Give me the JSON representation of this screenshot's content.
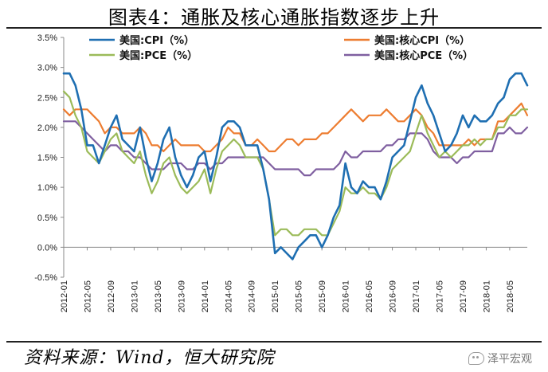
{
  "header": {
    "title": "图表4：通胀及核心通胀指数逐步上升"
  },
  "footer": {
    "source": "资料来源：Wind，恒大研究院",
    "watermark": "泽平宏观",
    "watermark_icon": "wechat-icon"
  },
  "chart_data": {
    "type": "line",
    "title": "图表4：通胀及核心通胀指数逐步上升",
    "xlabel": "",
    "ylabel": "",
    "ylim": [
      -0.5,
      3.5
    ],
    "yticks": [
      "-0.5%",
      "0.0%",
      "0.5%",
      "1.0%",
      "1.5%",
      "2.0%",
      "2.5%",
      "3.0%",
      "3.5%"
    ],
    "ytick_values": [
      -0.5,
      0.0,
      0.5,
      1.0,
      1.5,
      2.0,
      2.5,
      3.0,
      3.5
    ],
    "xtick_labels": [
      "2012-01",
      "2012-05",
      "2012-09",
      "2013-01",
      "2013-05",
      "2013-09",
      "2014-01",
      "2014-05",
      "2014-09",
      "2015-01",
      "2015-05",
      "2015-09",
      "2016-01",
      "2016-05",
      "2016-09",
      "2017-01",
      "2017-05",
      "2017-09",
      "2018-01",
      "2018-05"
    ],
    "x_start": "2012-01",
    "x_end": "2018-07",
    "grid": false,
    "legend_position": "top",
    "series": [
      {
        "name": "美国:CPI（%）",
        "color": "#1f6fb2",
        "values": [
          2.9,
          2.9,
          2.7,
          2.3,
          1.7,
          1.7,
          1.4,
          1.7,
          2.0,
          2.2,
          1.8,
          1.7,
          1.6,
          2.0,
          1.5,
          1.1,
          1.4,
          1.8,
          2.0,
          1.5,
          1.2,
          1.0,
          1.2,
          1.5,
          1.6,
          1.1,
          1.5,
          2.0,
          2.1,
          2.1,
          2.0,
          1.7,
          1.7,
          1.7,
          1.3,
          0.8,
          -0.1,
          0.0,
          -0.1,
          -0.2,
          0.0,
          0.1,
          0.2,
          0.2,
          0.0,
          0.2,
          0.5,
          0.7,
          1.4,
          1.0,
          0.9,
          1.1,
          1.0,
          1.0,
          0.8,
          1.1,
          1.5,
          1.6,
          1.7,
          2.1,
          2.5,
          2.7,
          2.4,
          2.2,
          1.9,
          1.6,
          1.7,
          1.9,
          2.2,
          2.0,
          2.2,
          2.1,
          2.1,
          2.2,
          2.4,
          2.5,
          2.8,
          2.9,
          2.9,
          2.7
        ]
      },
      {
        "name": "美国:核心CPI（%）",
        "color": "#ed7d31",
        "values": [
          2.3,
          2.2,
          2.3,
          2.3,
          2.3,
          2.2,
          2.1,
          1.9,
          2.0,
          2.0,
          1.9,
          1.9,
          1.9,
          2.0,
          1.9,
          1.7,
          1.7,
          1.6,
          1.7,
          1.8,
          1.7,
          1.7,
          1.7,
          1.7,
          1.6,
          1.6,
          1.7,
          1.8,
          2.0,
          1.9,
          1.9,
          1.7,
          1.7,
          1.8,
          1.7,
          1.6,
          1.6,
          1.7,
          1.8,
          1.8,
          1.7,
          1.8,
          1.8,
          1.8,
          1.9,
          1.9,
          2.0,
          2.1,
          2.2,
          2.3,
          2.2,
          2.1,
          2.2,
          2.2,
          2.2,
          2.3,
          2.2,
          2.1,
          2.1,
          2.2,
          2.3,
          2.2,
          2.0,
          1.9,
          1.7,
          1.7,
          1.7,
          1.7,
          1.7,
          1.8,
          1.7,
          1.8,
          1.8,
          1.8,
          2.1,
          2.1,
          2.2,
          2.3,
          2.4,
          2.2
        ]
      },
      {
        "name": "美国:PCE（%）",
        "color": "#9bbb59",
        "values": [
          2.6,
          2.5,
          2.2,
          2.0,
          1.6,
          1.5,
          1.4,
          1.6,
          1.8,
          1.9,
          1.6,
          1.5,
          1.4,
          1.6,
          1.2,
          0.9,
          1.1,
          1.4,
          1.5,
          1.2,
          1.0,
          0.9,
          1.0,
          1.1,
          1.3,
          0.9,
          1.3,
          1.6,
          1.7,
          1.8,
          1.7,
          1.5,
          1.5,
          1.5,
          1.3,
          0.8,
          0.2,
          0.3,
          0.3,
          0.2,
          0.2,
          0.3,
          0.3,
          0.3,
          0.2,
          0.2,
          0.4,
          0.6,
          1.0,
          0.9,
          0.9,
          1.0,
          0.9,
          0.9,
          0.8,
          1.0,
          1.3,
          1.4,
          1.5,
          1.6,
          1.9,
          2.2,
          1.9,
          1.7,
          1.5,
          1.6,
          1.5,
          1.6,
          1.7,
          1.7,
          1.8,
          1.7,
          1.8,
          1.8,
          2.0,
          2.0,
          2.2,
          2.2,
          2.3,
          2.3
        ]
      },
      {
        "name": "美国:核心PCE（%）",
        "color": "#7f5fa0",
        "values": [
          2.1,
          2.1,
          2.1,
          2.0,
          1.9,
          1.8,
          1.7,
          1.6,
          1.7,
          1.7,
          1.6,
          1.6,
          1.5,
          1.5,
          1.4,
          1.3,
          1.3,
          1.3,
          1.4,
          1.4,
          1.4,
          1.3,
          1.3,
          1.4,
          1.4,
          1.3,
          1.4,
          1.4,
          1.5,
          1.5,
          1.5,
          1.5,
          1.5,
          1.5,
          1.5,
          1.4,
          1.3,
          1.3,
          1.3,
          1.3,
          1.3,
          1.2,
          1.2,
          1.3,
          1.3,
          1.3,
          1.3,
          1.4,
          1.6,
          1.5,
          1.5,
          1.6,
          1.6,
          1.6,
          1.6,
          1.7,
          1.7,
          1.8,
          1.8,
          1.9,
          1.9,
          1.9,
          1.8,
          1.6,
          1.5,
          1.5,
          1.5,
          1.4,
          1.5,
          1.5,
          1.6,
          1.6,
          1.6,
          1.6,
          1.9,
          1.9,
          2.0,
          1.9,
          1.9,
          2.0
        ]
      }
    ]
  }
}
